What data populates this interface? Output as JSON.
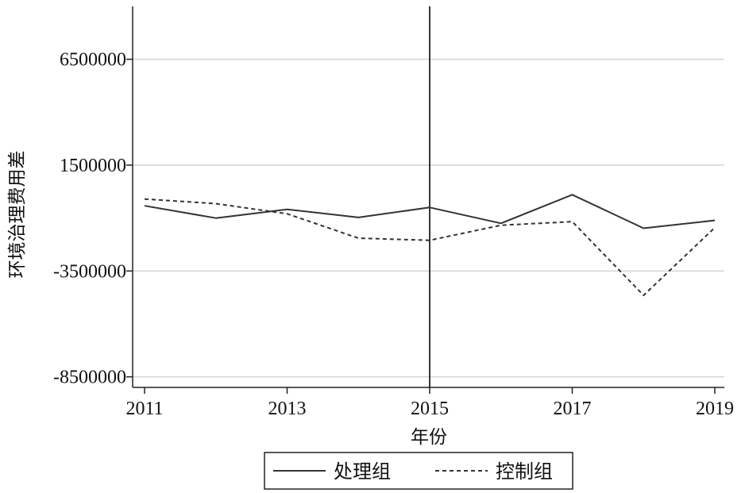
{
  "chart_data": {
    "type": "line",
    "xlabel": "年份",
    "ylabel": "环境治理费用差",
    "x": [
      2011,
      2012,
      2013,
      2014,
      2015,
      2016,
      2017,
      2018,
      2019
    ],
    "x_ticks": [
      "2011",
      "2013",
      "2015",
      "2017",
      "2019"
    ],
    "y_ticks": [
      "-8500000",
      "-3500000",
      "1500000",
      "6500000"
    ],
    "y_tick_values": [
      -8500000,
      -3500000,
      1500000,
      6500000
    ],
    "ylim": [
      -9000000,
      9000000
    ],
    "xlim": [
      2010.9,
      2019.1
    ],
    "grid": true,
    "reference_line_x": 2015,
    "legend_position": "bottom",
    "series": [
      {
        "name": "处理组",
        "style": "solid",
        "color": "#333333",
        "values": [
          -420000,
          -1000000,
          -590000,
          -970000,
          -500000,
          -1250000,
          100000,
          -1480000,
          -1110000
        ]
      },
      {
        "name": "控制组",
        "style": "dashed",
        "color": "#333333",
        "values": [
          -100000,
          -320000,
          -800000,
          -1950000,
          -2050000,
          -1340000,
          -1170000,
          -4650000,
          -1450000
        ]
      }
    ]
  }
}
